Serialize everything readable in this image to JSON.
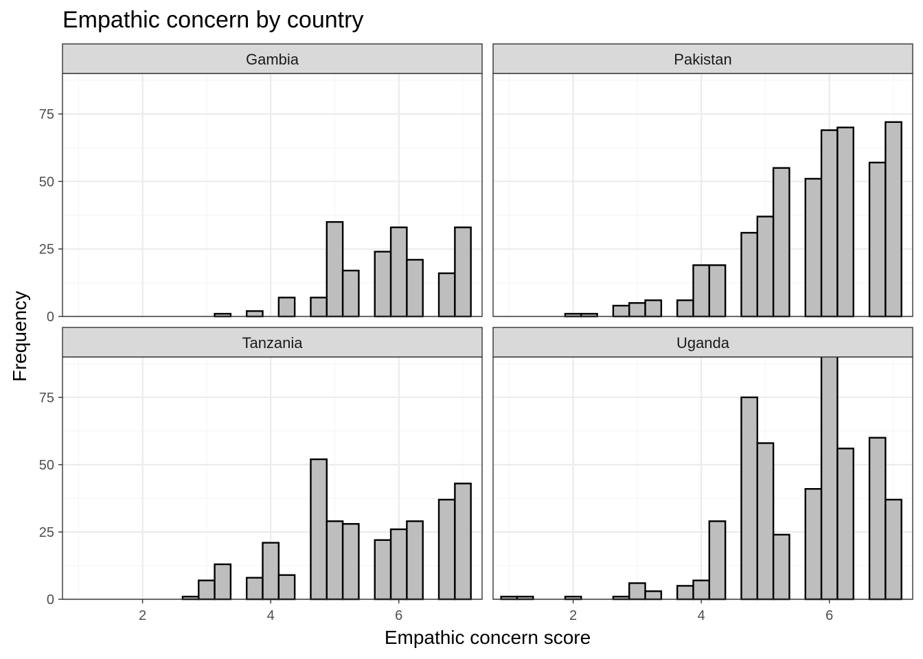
{
  "chart_data": {
    "type": "bar",
    "title": "Empathic concern by country",
    "xlabel": "Empathic concern score",
    "ylabel": "Frequency",
    "xlim": [
      0.75,
      7.3
    ],
    "ylim": [
      0,
      90
    ],
    "xticks": [
      2,
      4,
      6
    ],
    "xtick_labels": [
      "2",
      "4",
      "6"
    ],
    "yticks": [
      0,
      25,
      50,
      75
    ],
    "ytick_labels": [
      "0",
      "25",
      "50",
      "75"
    ],
    "grid": true,
    "legend": "none",
    "bin_width": 0.25,
    "bins": [
      1.0,
      1.25,
      1.5,
      1.75,
      2.0,
      2.25,
      2.5,
      2.75,
      3.0,
      3.25,
      3.5,
      3.75,
      4.0,
      4.25,
      4.5,
      4.75,
      5.0,
      5.25,
      5.5,
      5.75,
      6.0,
      6.25,
      6.5,
      6.75,
      7.0
    ],
    "facets": [
      {
        "name": "Gambia",
        "values": [
          0,
          0,
          0,
          0,
          0,
          0,
          0,
          0,
          0,
          1,
          0,
          2,
          0,
          7,
          0,
          7,
          35,
          17,
          0,
          24,
          33,
          21,
          0,
          16,
          33
        ]
      },
      {
        "name": "Pakistan",
        "values": [
          0,
          0,
          0,
          0,
          1,
          1,
          0,
          4,
          5,
          6,
          0,
          6,
          19,
          19,
          0,
          31,
          37,
          55,
          0,
          51,
          69,
          70,
          0,
          57,
          72
        ]
      },
      {
        "name": "Tanzania",
        "values": [
          0,
          0,
          0,
          0,
          0,
          0,
          0,
          1,
          7,
          13,
          0,
          8,
          21,
          9,
          0,
          52,
          29,
          28,
          0,
          22,
          26,
          29,
          0,
          37,
          43
        ]
      },
      {
        "name": "Uganda",
        "values": [
          1,
          1,
          0,
          0,
          1,
          0,
          0,
          1,
          6,
          3,
          0,
          5,
          7,
          29,
          0,
          75,
          58,
          24,
          0,
          41,
          91,
          56,
          0,
          60,
          37
        ]
      }
    ],
    "colors": {
      "bar_fill": "#bebebe",
      "bar_stroke": "#000000",
      "strip_fill": "#d9d9d9",
      "grid_major": "#ebebeb",
      "grid_minor": "#f5f5f5",
      "panel_border": "#333333"
    }
  }
}
